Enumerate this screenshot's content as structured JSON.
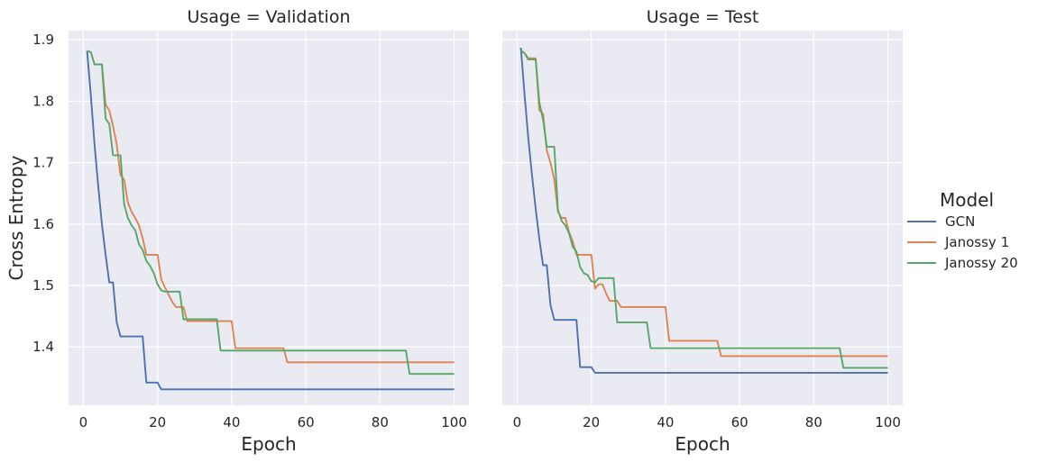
{
  "chart_data": {
    "type": "line",
    "ylabel": "Cross Entropy",
    "ylim": [
      1.305,
      1.915
    ],
    "xlim": [
      -4,
      104
    ],
    "x_ticks": [
      0,
      20,
      40,
      60,
      80,
      100
    ],
    "y_ticks": [
      1.4,
      1.5,
      1.6,
      1.7,
      1.8,
      1.9
    ],
    "legend": {
      "title": "Model",
      "position": "right"
    },
    "grid": true,
    "colors": {
      "GCN": "#4c72b0",
      "Janossy 1": "#dd8452",
      "Janossy 20": "#55a868",
      "background": "#eaeaf2",
      "grid": "#ffffff"
    },
    "panels": [
      {
        "title": "Usage = Validation",
        "xlabel": "Epoch",
        "series": [
          {
            "name": "GCN",
            "x": [
              1,
              2,
              3,
              4,
              5,
              6,
              7,
              8,
              9,
              10,
              16,
              17,
              20,
              21,
              100
            ],
            "y": [
              1.882,
              1.81,
              1.73,
              1.662,
              1.6,
              1.55,
              1.505,
              1.505,
              1.44,
              1.417,
              1.417,
              1.342,
              1.342,
              1.331,
              1.331
            ]
          },
          {
            "name": "Janossy 1",
            "x": [
              1,
              2,
              3,
              5,
              6,
              7,
              8,
              9,
              10,
              11,
              12,
              13,
              14,
              15,
              16,
              17,
              20,
              21,
              22,
              23,
              24,
              25,
              27,
              28,
              29,
              35,
              36,
              40,
              41,
              54,
              55,
              100
            ],
            "y": [
              1.882,
              1.88,
              1.86,
              1.86,
              1.795,
              1.785,
              1.76,
              1.73,
              1.68,
              1.672,
              1.635,
              1.62,
              1.61,
              1.598,
              1.577,
              1.55,
              1.55,
              1.51,
              1.497,
              1.485,
              1.473,
              1.465,
              1.465,
              1.442,
              1.442,
              1.442,
              1.442,
              1.442,
              1.398,
              1.398,
              1.375,
              1.375
            ]
          },
          {
            "name": "Janossy 20",
            "x": [
              1,
              2,
              3,
              5,
              6,
              7,
              8,
              10,
              11,
              12,
              13,
              14,
              15,
              16,
              17,
              18,
              19,
              20,
              21,
              22,
              26,
              27,
              36,
              37,
              87,
              88,
              100
            ],
            "y": [
              1.882,
              1.88,
              1.86,
              1.86,
              1.772,
              1.763,
              1.712,
              1.712,
              1.632,
              1.61,
              1.598,
              1.59,
              1.567,
              1.558,
              1.54,
              1.532,
              1.52,
              1.502,
              1.492,
              1.49,
              1.49,
              1.445,
              1.445,
              1.394,
              1.394,
              1.356,
              1.356
            ]
          }
        ]
      },
      {
        "title": "Usage = Test",
        "xlabel": "Epoch",
        "series": [
          {
            "name": "GCN",
            "x": [
              1,
              2,
              3,
              4,
              5,
              6,
              7,
              8,
              9,
              10,
              16,
              17,
              20,
              21,
              100
            ],
            "y": [
              1.887,
              1.81,
              1.74,
              1.68,
              1.625,
              1.575,
              1.533,
              1.533,
              1.468,
              1.444,
              1.444,
              1.367,
              1.367,
              1.358,
              1.358
            ]
          },
          {
            "name": "Janossy 1",
            "x": [
              1,
              2,
              3,
              5,
              6,
              7,
              8,
              9,
              10,
              11,
              12,
              13,
              14,
              15,
              16,
              17,
              20,
              21,
              22,
              23,
              24,
              25,
              26,
              27,
              28,
              29,
              40,
              41,
              54,
              55,
              100
            ],
            "y": [
              1.883,
              1.878,
              1.87,
              1.87,
              1.785,
              1.78,
              1.72,
              1.7,
              1.673,
              1.62,
              1.61,
              1.61,
              1.587,
              1.572,
              1.55,
              1.55,
              1.55,
              1.495,
              1.502,
              1.502,
              1.487,
              1.475,
              1.475,
              1.475,
              1.465,
              1.465,
              1.465,
              1.41,
              1.41,
              1.385,
              1.385
            ]
          },
          {
            "name": "Janossy 20",
            "x": [
              1,
              2,
              3,
              5,
              6,
              7,
              8,
              10,
              11,
              12,
              13,
              14,
              15,
              16,
              17,
              18,
              19,
              20,
              21,
              22,
              26,
              27,
              35,
              36,
              87,
              88,
              100
            ],
            "y": [
              1.883,
              1.878,
              1.868,
              1.868,
              1.798,
              1.77,
              1.726,
              1.726,
              1.623,
              1.605,
              1.598,
              1.585,
              1.563,
              1.555,
              1.53,
              1.52,
              1.517,
              1.507,
              1.505,
              1.512,
              1.512,
              1.44,
              1.44,
              1.398,
              1.398,
              1.366,
              1.366
            ]
          }
        ]
      }
    ]
  }
}
